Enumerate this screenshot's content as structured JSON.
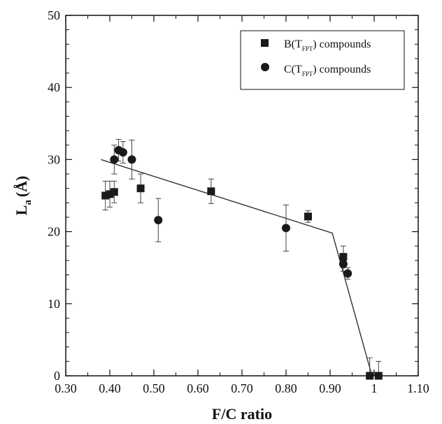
{
  "chart_data": {
    "type": "scatter",
    "title": "",
    "xlabel": "F/C ratio",
    "ylabel_main": "L",
    "ylabel_sub": "a",
    "ylabel_unit": "(Å)",
    "xlim": [
      0.3,
      1.1
    ],
    "ylim": [
      0,
      50
    ],
    "x_ticks": [
      0.3,
      0.4,
      0.5,
      0.6,
      0.7,
      0.8,
      0.9,
      1.0,
      1.1
    ],
    "x_tick_labels": [
      "0.30",
      "0.40",
      "0.50",
      "0.60",
      "0.70",
      "0.80",
      "0.90",
      "1",
      "1.10"
    ],
    "y_ticks": [
      0,
      10,
      20,
      30,
      40,
      50
    ],
    "y_tick_labels": [
      "0",
      "10",
      "20",
      "30",
      "40",
      "50"
    ],
    "grid": false,
    "legend_position": "top-right",
    "series": [
      {
        "legend_pre": "B(T",
        "legend_sub": "FPT",
        "legend_post": ") compounds",
        "marker": "square",
        "color": "#1a1a1a",
        "points": [
          {
            "x": 0.39,
            "y": 25.0,
            "err": 2.0
          },
          {
            "x": 0.4,
            "y": 25.2,
            "err": 1.8
          },
          {
            "x": 0.41,
            "y": 25.5,
            "err": 1.5
          },
          {
            "x": 0.47,
            "y": 26.0,
            "err": 2.0
          },
          {
            "x": 0.63,
            "y": 25.6,
            "err": 1.7
          },
          {
            "x": 0.85,
            "y": 22.1,
            "err": 0.8
          },
          {
            "x": 0.93,
            "y": 16.5,
            "err": 1.5
          },
          {
            "x": 0.99,
            "y": 0.0,
            "err": 2.5
          },
          {
            "x": 1.01,
            "y": 0.0,
            "err": 2.0
          }
        ]
      },
      {
        "legend_pre": "C(T",
        "legend_sub": "FPT",
        "legend_post": ") compounds",
        "marker": "circle",
        "color": "#1a1a1a",
        "points": [
          {
            "x": 0.41,
            "y": 30.0,
            "err": 2.0
          },
          {
            "x": 0.42,
            "y": 31.3,
            "err": 1.5
          },
          {
            "x": 0.43,
            "y": 31.0,
            "err": 1.5
          },
          {
            "x": 0.45,
            "y": 30.0,
            "err": 2.7
          },
          {
            "x": 0.51,
            "y": 21.6,
            "err": 3.0
          },
          {
            "x": 0.8,
            "y": 20.5,
            "err": 3.2
          },
          {
            "x": 0.93,
            "y": 15.5,
            "err": 1.0
          },
          {
            "x": 0.94,
            "y": 14.2,
            "err": 0.8
          }
        ]
      }
    ],
    "fit_line": [
      {
        "x": 0.38,
        "y": 30.0
      },
      {
        "x": 0.905,
        "y": 19.8
      },
      {
        "x": 0.995,
        "y": 0.0
      }
    ]
  }
}
